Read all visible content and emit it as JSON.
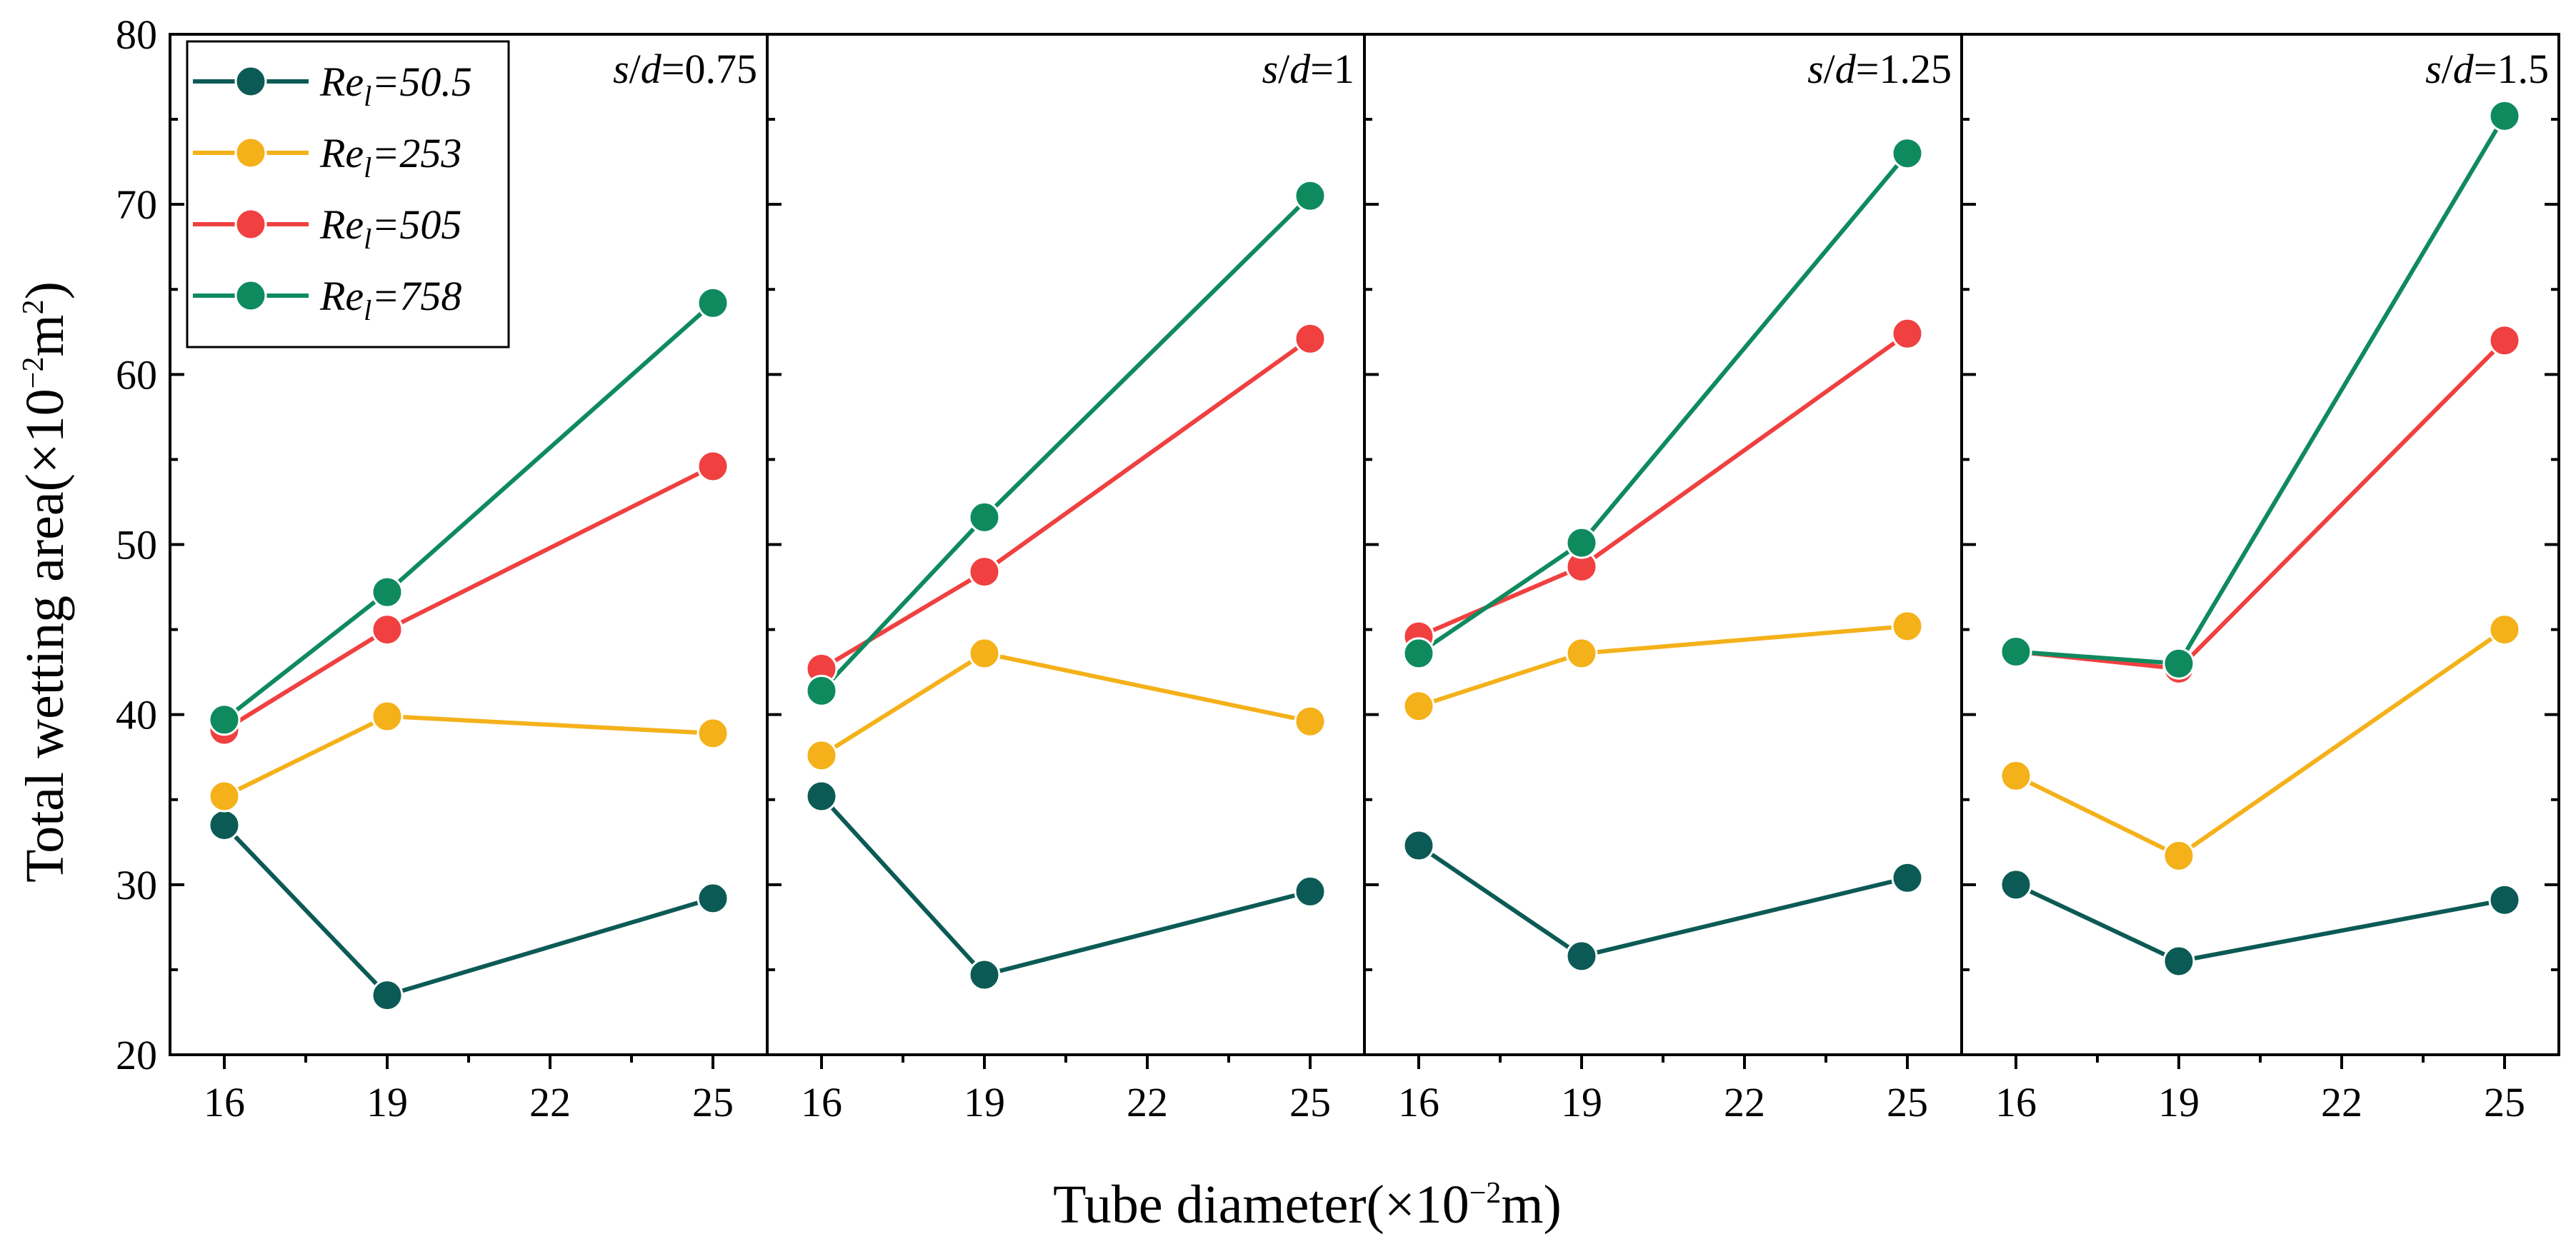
{
  "chart_data": {
    "type": "line",
    "ylabel_parts": [
      "Total wetting area(",
      "×10",
      "−2",
      "m",
      "2",
      ")"
    ],
    "xlabel_parts": [
      "Tube diameter(",
      "×10",
      "−2",
      "m)"
    ],
    "ylim": [
      20,
      80
    ],
    "yticks": [
      "20",
      "30",
      "40",
      "50",
      "60",
      "70",
      "80"
    ],
    "xlim": [
      15,
      26
    ],
    "xticks": [
      "16",
      "19",
      "22",
      "25"
    ],
    "x": [
      16,
      19,
      25
    ],
    "legend": {
      "position": "top-left",
      "entries": [
        {
          "prefix": "Re",
          "sub": "l",
          "value": "=50.5",
          "color": "#0c5a55"
        },
        {
          "prefix": "Re",
          "sub": "l",
          "value": "=253",
          "color": "#f4b11a"
        },
        {
          "prefix": "Re",
          "sub": "l",
          "value": "=505",
          "color": "#f04040"
        },
        {
          "prefix": "Re",
          "sub": "l",
          "value": "=758",
          "color": "#0f8a5f"
        }
      ]
    },
    "panels": [
      {
        "label_var": "s/d",
        "label_value": "=0.75",
        "series": [
          {
            "name": "Rel=50.5",
            "color": "#0c5a55",
            "values": [
              33.5,
              23.5,
              29.2
            ]
          },
          {
            "name": "Rel=253",
            "color": "#f4b11a",
            "values": [
              35.2,
              39.9,
              38.9
            ]
          },
          {
            "name": "Rel=505",
            "color": "#f04040",
            "values": [
              39.1,
              45.0,
              54.6
            ]
          },
          {
            "name": "Rel=758",
            "color": "#0f8a5f",
            "values": [
              39.7,
              47.2,
              64.2
            ]
          }
        ]
      },
      {
        "label_var": "s/d",
        "label_value": "=1",
        "series": [
          {
            "name": "Rel=50.5",
            "color": "#0c5a55",
            "values": [
              35.2,
              24.7,
              29.6
            ]
          },
          {
            "name": "Rel=253",
            "color": "#f4b11a",
            "values": [
              37.6,
              43.6,
              39.6
            ]
          },
          {
            "name": "Rel=505",
            "color": "#f04040",
            "values": [
              42.7,
              48.4,
              62.1
            ]
          },
          {
            "name": "Rel=758",
            "color": "#0f8a5f",
            "values": [
              41.4,
              51.6,
              70.5
            ]
          }
        ]
      },
      {
        "label_var": "s/d",
        "label_value": "=1.25",
        "series": [
          {
            "name": "Rel=50.5",
            "color": "#0c5a55",
            "values": [
              32.3,
              25.8,
              30.4
            ]
          },
          {
            "name": "Rel=253",
            "color": "#f4b11a",
            "values": [
              40.5,
              43.6,
              45.2
            ]
          },
          {
            "name": "Rel=505",
            "color": "#f04040",
            "values": [
              44.6,
              48.7,
              62.4
            ]
          },
          {
            "name": "Rel=758",
            "color": "#0f8a5f",
            "values": [
              43.6,
              50.1,
              73.0
            ]
          }
        ]
      },
      {
        "label_var": "s/d",
        "label_value": "=1.5",
        "series": [
          {
            "name": "Rel=50.5",
            "color": "#0c5a55",
            "values": [
              30.0,
              25.5,
              29.1
            ]
          },
          {
            "name": "Rel=253",
            "color": "#f4b11a",
            "values": [
              36.4,
              31.7,
              45.0
            ]
          },
          {
            "name": "Rel=505",
            "color": "#f04040",
            "values": [
              43.7,
              42.7,
              62.0
            ]
          },
          {
            "name": "Rel=758",
            "color": "#0f8a5f",
            "values": [
              43.7,
              43.0,
              75.2
            ]
          }
        ]
      }
    ]
  }
}
